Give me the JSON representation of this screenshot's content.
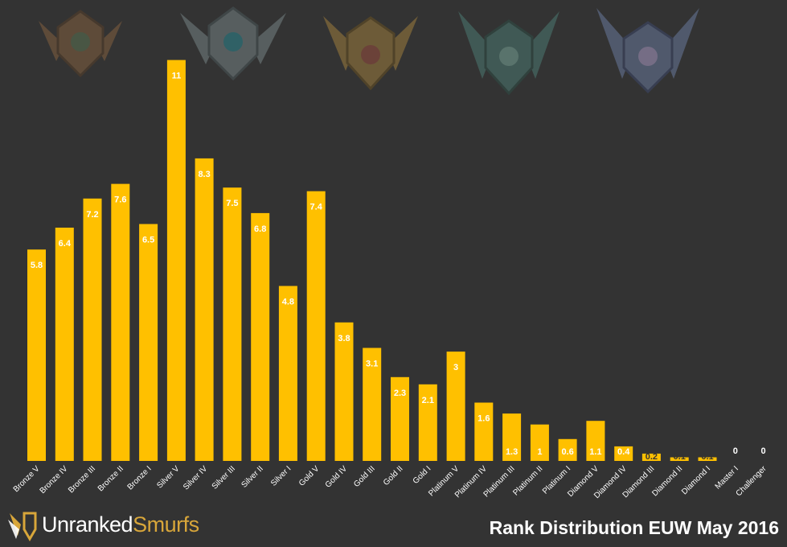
{
  "chart_data": {
    "type": "bar",
    "title": "Rank Distribution EUW May 2016",
    "categories": [
      "Bronze V",
      "Bronze IV",
      "Bronze III",
      "Bronze II",
      "Bronze I",
      "Silver V",
      "Silver IV",
      "Silver III",
      "Silver II",
      "Silver I",
      "Gold V",
      "Gold IV",
      "Gold III",
      "Gold II",
      "Gold I",
      "Platinum V",
      "Platinum IV",
      "Platinum III",
      "Platinum II",
      "Platinum I",
      "Diamond V",
      "Diamond IV",
      "Diamond III",
      "Diamond II",
      "Diamond I",
      "Master I",
      "Challenger"
    ],
    "values": [
      5.8,
      6.4,
      7.2,
      7.6,
      6.5,
      11,
      8.3,
      7.5,
      6.8,
      4.8,
      7.4,
      3.8,
      3.1,
      2.3,
      2.1,
      3,
      1.6,
      1.3,
      1,
      0.6,
      1.1,
      0.4,
      0.2,
      0.1,
      0.1,
      0,
      0
    ],
    "value_labels": [
      "5.8",
      "6.4",
      "7.2",
      "7.6",
      "6.5",
      "11",
      "8.3",
      "7.5",
      "6.8",
      "4.8",
      "7.4",
      "3.8",
      "3.1",
      "2.3",
      "2.1",
      "3",
      "1.6",
      "1.3",
      "1",
      "0.6",
      "1.1",
      "0.4",
      "0.2",
      "0.1",
      "0.1",
      "0",
      "0"
    ],
    "ylim": [
      0,
      11.3
    ],
    "grid": false,
    "legend": "none",
    "bar_color": "#ffc000",
    "background_color": "#333333",
    "label_color_light": "#ffffff",
    "label_color_dark": "#333333"
  },
  "badges": [
    {
      "icon": "bronze-badge-icon",
      "color": "#8a6440"
    },
    {
      "icon": "silver-badge-icon",
      "color": "#7c8a8c"
    },
    {
      "icon": "gold-badge-icon",
      "color": "#a8843e"
    },
    {
      "icon": "platinum-badge-icon",
      "color": "#4e8077"
    },
    {
      "icon": "diamond-badge-icon",
      "color": "#6d7fa6"
    }
  ],
  "logo": {
    "icon": "wings-shield-icon",
    "word1": "Unranked",
    "word2": "Smurfs",
    "accent_color": "#d8a63a"
  }
}
